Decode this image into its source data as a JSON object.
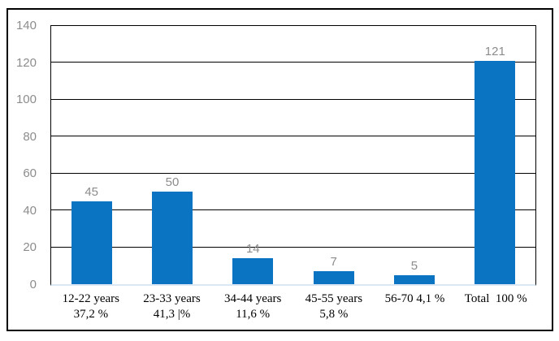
{
  "window": {
    "background": "#ffffff",
    "outer_border_color": "#000000"
  },
  "chart_data": {
    "type": "bar",
    "title": "",
    "xlabel": "",
    "ylabel": "",
    "categories": [
      "12-22 years\n37,2 %",
      "23-33 years\n41,3 |%",
      "34-44 years\n11,6 %",
      "45-55 years\n5,8 %",
      "56-70 4,1 %",
      "Total  100 %"
    ],
    "values": [
      45,
      50,
      14,
      7,
      5,
      121
    ],
    "data_labels": [
      "45",
      "50",
      "14",
      "7",
      "5",
      "121"
    ],
    "ylim": [
      0,
      140
    ],
    "yticks": [
      0,
      20,
      40,
      60,
      80,
      100,
      120,
      140
    ],
    "grid": true,
    "legend": "none",
    "gap_ratio": 0.5,
    "colors": {
      "bar": "#0a73c2",
      "gridline": "#000000",
      "plot_border": "#000000",
      "baseline": "#dbe7f3",
      "tick_label": "#8c8c8c",
      "data_label": "#8c8c8c",
      "category_label": "#000000"
    }
  }
}
